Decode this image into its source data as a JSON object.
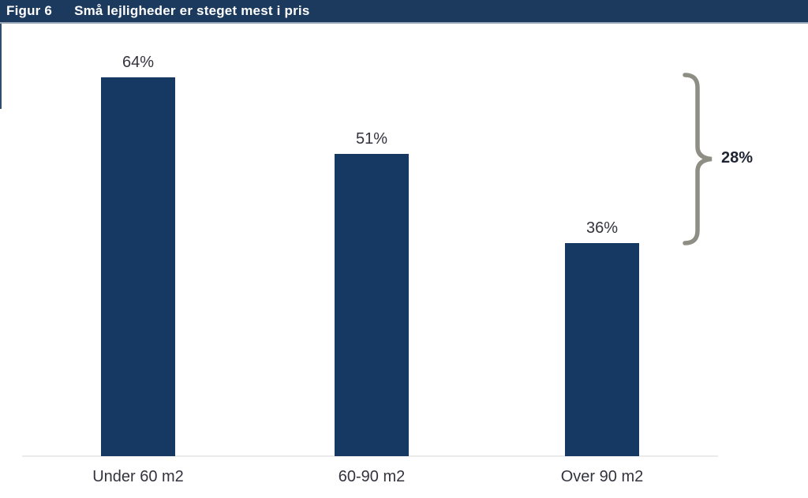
{
  "figure": {
    "label": "Figur 6",
    "title": "Små lejligheder er steget mest i pris"
  },
  "chart_data": {
    "type": "bar",
    "title": "Små lejligheder er steget mest i pris",
    "categories": [
      "Under 60 m2",
      "60-90 m2",
      "Over 90 m2"
    ],
    "values": [
      64,
      51,
      36
    ],
    "value_labels": [
      "64%",
      "51%",
      "36%"
    ],
    "xlabel": "",
    "ylabel": "",
    "ylim": [
      0,
      70
    ],
    "grid": false,
    "legend": "none",
    "annotation": {
      "type": "brace",
      "label": "28%",
      "spans_from_category": "Under 60 m2",
      "spans_to_category": "Over 90 m2"
    }
  },
  "colors": {
    "background": "#FFFFFF",
    "header_bg": "#1C3A5E",
    "header_text": "#FFFFFF",
    "header_border": "#9AA7B8",
    "bar": "#153963",
    "brace": "#8E8E85",
    "axis_line": "#EBEBEB",
    "label_text": "#33333E",
    "annotation_text": "#1E2433"
  }
}
